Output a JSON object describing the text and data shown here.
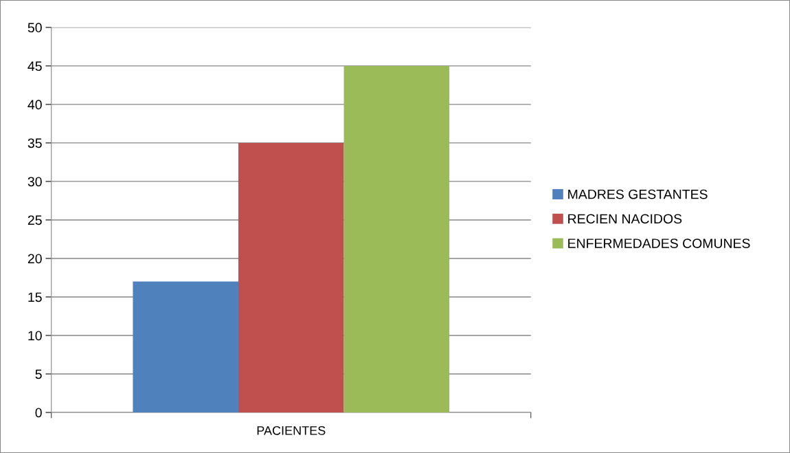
{
  "chart_data": {
    "type": "bar",
    "categories": [
      "PACIENTES"
    ],
    "series": [
      {
        "name": "MADRES GESTANTES",
        "color": "#4f81bd",
        "values": [
          17
        ]
      },
      {
        "name": "RECIEN NACIDOS",
        "color": "#c0504d",
        "values": [
          35
        ]
      },
      {
        "name": "ENFERMEDADES COMUNES",
        "color": "#9bbb59",
        "values": [
          45
        ]
      }
    ],
    "ylim": [
      0,
      50
    ],
    "yticks": [
      0,
      5,
      10,
      15,
      20,
      25,
      30,
      35,
      40,
      45,
      50
    ],
    "grid": "y",
    "legend": "right"
  }
}
